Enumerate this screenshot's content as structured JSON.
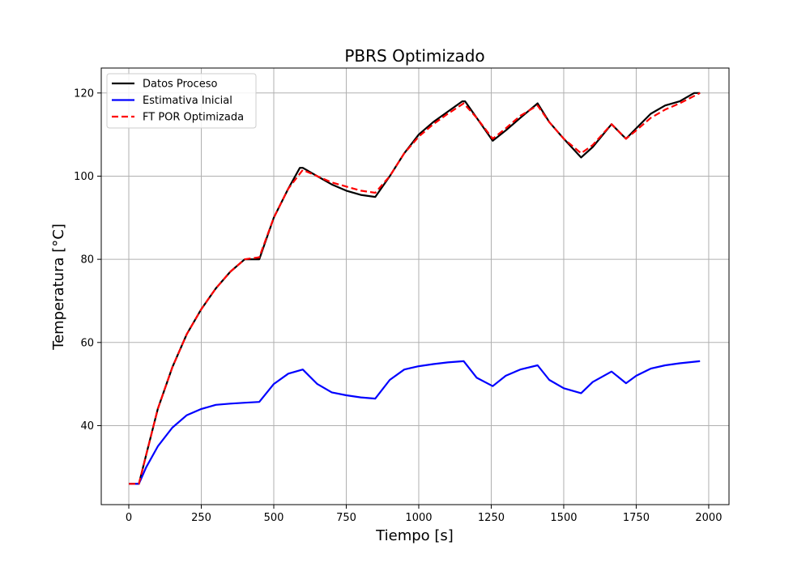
{
  "chart_data": {
    "type": "line",
    "title": "PBRS Optimizado",
    "xlabel": "Tiempo [s]",
    "ylabel": "Temperatura [°C]",
    "xlim": [
      -95,
      2070
    ],
    "ylim": [
      21,
      126
    ],
    "xticks": [
      0,
      250,
      500,
      750,
      1000,
      1250,
      1500,
      1750,
      2000
    ],
    "yticks": [
      40,
      60,
      80,
      100,
      120
    ],
    "grid": true,
    "legend_position": "top-left",
    "series": [
      {
        "name": "Datos Proceso",
        "color": "#000000",
        "style": "solid",
        "x": [
          0,
          35,
          60,
          100,
          150,
          200,
          250,
          300,
          350,
          400,
          450,
          500,
          550,
          590,
          600,
          650,
          700,
          750,
          800,
          850,
          900,
          950,
          1000,
          1050,
          1100,
          1150,
          1160,
          1200,
          1255,
          1300,
          1350,
          1410,
          1450,
          1500,
          1560,
          1600,
          1665,
          1700,
          1715,
          1750,
          1800,
          1850,
          1900,
          1950,
          1970
        ],
        "y": [
          26,
          26,
          33,
          44,
          54,
          62,
          68,
          73,
          77,
          80,
          80,
          90,
          97,
          102,
          102,
          100,
          98,
          96.5,
          95.5,
          95,
          100,
          105.5,
          110,
          113,
          115.5,
          118,
          118,
          114,
          108.5,
          111,
          114,
          117.5,
          113,
          109,
          104.5,
          107,
          112.5,
          110,
          109,
          111.5,
          115,
          117,
          118,
          120,
          120
        ]
      },
      {
        "name": "Estimativa Inicial",
        "color": "#0000ff",
        "style": "solid",
        "x": [
          0,
          35,
          60,
          100,
          150,
          200,
          250,
          300,
          350,
          400,
          450,
          500,
          550,
          600,
          650,
          700,
          750,
          800,
          850,
          900,
          950,
          1000,
          1050,
          1100,
          1155,
          1200,
          1255,
          1300,
          1350,
          1410,
          1450,
          1500,
          1560,
          1600,
          1665,
          1715,
          1750,
          1800,
          1850,
          1900,
          1970
        ],
        "y": [
          26,
          26,
          30,
          35,
          39.5,
          42.5,
          44,
          45,
          45.3,
          45.5,
          45.7,
          50,
          52.5,
          53.5,
          50,
          48,
          47.3,
          46.8,
          46.5,
          51,
          53.5,
          54.3,
          54.8,
          55.2,
          55.5,
          51.5,
          49.5,
          52,
          53.5,
          54.5,
          51,
          49,
          47.8,
          50.5,
          53,
          50.2,
          52,
          53.7,
          54.5,
          55,
          55.5
        ]
      },
      {
        "name": "FT POR Optimizada",
        "color": "#ff0000",
        "style": "dashed",
        "x": [
          0,
          35,
          60,
          100,
          150,
          200,
          250,
          300,
          350,
          400,
          450,
          500,
          550,
          600,
          650,
          700,
          750,
          800,
          850,
          900,
          950,
          1000,
          1050,
          1100,
          1155,
          1200,
          1255,
          1300,
          1350,
          1410,
          1450,
          1500,
          1560,
          1600,
          1665,
          1715,
          1750,
          1800,
          1850,
          1900,
          1970
        ],
        "y": [
          26,
          26,
          33,
          44,
          54,
          62,
          68,
          73,
          77,
          80,
          80.5,
          90,
          97,
          101.5,
          100,
          98.5,
          97.5,
          96.5,
          96,
          100,
          105.5,
          109.5,
          112.5,
          115,
          117.5,
          114,
          109,
          111.5,
          114.5,
          117,
          113,
          109,
          105.5,
          107.5,
          112.5,
          109,
          111,
          114,
          116,
          117.5,
          120
        ]
      }
    ]
  }
}
